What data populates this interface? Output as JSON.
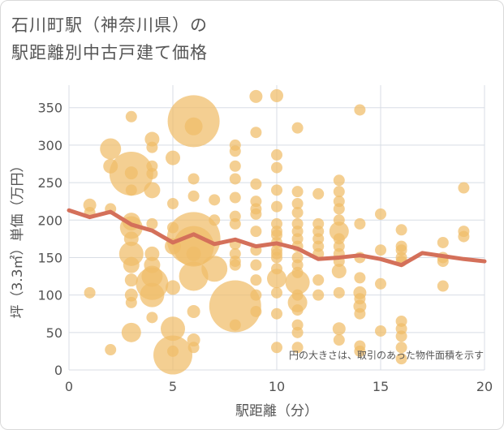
{
  "title": {
    "line1": "石川町駅（神奈川県）の",
    "line2": "駅距離別中古戸建て価格"
  },
  "chart_data": {
    "type": "scatter",
    "xlabel": "駅距離（分）",
    "ylabel": "坪（3.3㎡）単価（万円）",
    "xlim": [
      0,
      20
    ],
    "ylim": [
      0,
      380
    ],
    "xticks": [
      "0",
      "5",
      "10",
      "15",
      "20"
    ],
    "xtick_values": [
      0,
      5,
      10,
      15,
      20
    ],
    "yticks": [
      "0",
      "50",
      "100",
      "150",
      "200",
      "250",
      "300",
      "350"
    ],
    "ytick_values": [
      0,
      50,
      100,
      150,
      200,
      250,
      300,
      350
    ],
    "grid": true,
    "annotation": "円の大きさは、取引のあった物件面積を示す",
    "colors": {
      "bubble": "#f0bd68",
      "line": "#d4705a",
      "grid": "#d8dde5"
    },
    "bubbles": [
      {
        "x": 1,
        "y": 220,
        "s": 8
      },
      {
        "x": 1,
        "y": 210,
        "s": 7
      },
      {
        "x": 1,
        "y": 103,
        "s": 7
      },
      {
        "x": 2,
        "y": 295,
        "s": 13
      },
      {
        "x": 2,
        "y": 272,
        "s": 9
      },
      {
        "x": 2,
        "y": 215,
        "s": 7
      },
      {
        "x": 2,
        "y": 27,
        "s": 7
      },
      {
        "x": 3,
        "y": 338,
        "s": 7
      },
      {
        "x": 3,
        "y": 262,
        "s": 27
      },
      {
        "x": 3,
        "y": 263,
        "s": 8
      },
      {
        "x": 3,
        "y": 240,
        "s": 7
      },
      {
        "x": 3,
        "y": 198,
        "s": 11
      },
      {
        "x": 3,
        "y": 190,
        "s": 14
      },
      {
        "x": 3,
        "y": 175,
        "s": 9
      },
      {
        "x": 3,
        "y": 155,
        "s": 15
      },
      {
        "x": 3,
        "y": 140,
        "s": 10
      },
      {
        "x": 3,
        "y": 120,
        "s": 8
      },
      {
        "x": 3,
        "y": 100,
        "s": 8
      },
      {
        "x": 3,
        "y": 90,
        "s": 7
      },
      {
        "x": 3,
        "y": 50,
        "s": 12
      },
      {
        "x": 4,
        "y": 308,
        "s": 9
      },
      {
        "x": 4,
        "y": 297,
        "s": 7
      },
      {
        "x": 4,
        "y": 272,
        "s": 7
      },
      {
        "x": 4,
        "y": 262,
        "s": 7
      },
      {
        "x": 4,
        "y": 240,
        "s": 10
      },
      {
        "x": 4,
        "y": 195,
        "s": 7
      },
      {
        "x": 4,
        "y": 155,
        "s": 9
      },
      {
        "x": 4,
        "y": 140,
        "s": 10
      },
      {
        "x": 4,
        "y": 125,
        "s": 13
      },
      {
        "x": 4,
        "y": 115,
        "s": 20
      },
      {
        "x": 4,
        "y": 100,
        "s": 15
      },
      {
        "x": 4,
        "y": 70,
        "s": 7
      },
      {
        "x": 5,
        "y": 283,
        "s": 9
      },
      {
        "x": 5,
        "y": 222,
        "s": 7
      },
      {
        "x": 5,
        "y": 190,
        "s": 7
      },
      {
        "x": 5,
        "y": 165,
        "s": 10
      },
      {
        "x": 5,
        "y": 110,
        "s": 9
      },
      {
        "x": 5,
        "y": 55,
        "s": 15
      },
      {
        "x": 5,
        "y": 25,
        "s": 7
      },
      {
        "x": 5,
        "y": 20,
        "s": 24
      },
      {
        "x": 6,
        "y": 332,
        "s": 32
      },
      {
        "x": 6,
        "y": 325,
        "s": 11
      },
      {
        "x": 6,
        "y": 255,
        "s": 7
      },
      {
        "x": 6,
        "y": 232,
        "s": 7
      },
      {
        "x": 6,
        "y": 175,
        "s": 33
      },
      {
        "x": 6,
        "y": 165,
        "s": 25
      },
      {
        "x": 6,
        "y": 155,
        "s": 9
      },
      {
        "x": 6,
        "y": 125,
        "s": 18
      },
      {
        "x": 6,
        "y": 78,
        "s": 8
      },
      {
        "x": 6,
        "y": 40,
        "s": 8
      },
      {
        "x": 6,
        "y": 30,
        "s": 7
      },
      {
        "x": 7,
        "y": 227,
        "s": 7
      },
      {
        "x": 7,
        "y": 200,
        "s": 7
      },
      {
        "x": 7,
        "y": 135,
        "s": 16
      },
      {
        "x": 8,
        "y": 300,
        "s": 7
      },
      {
        "x": 8,
        "y": 292,
        "s": 7
      },
      {
        "x": 8,
        "y": 272,
        "s": 7
      },
      {
        "x": 8,
        "y": 255,
        "s": 7
      },
      {
        "x": 8,
        "y": 230,
        "s": 7
      },
      {
        "x": 8,
        "y": 205,
        "s": 7
      },
      {
        "x": 8,
        "y": 195,
        "s": 7
      },
      {
        "x": 8,
        "y": 168,
        "s": 7
      },
      {
        "x": 8,
        "y": 155,
        "s": 7
      },
      {
        "x": 8,
        "y": 145,
        "s": 7
      },
      {
        "x": 8,
        "y": 140,
        "s": 7
      },
      {
        "x": 8,
        "y": 85,
        "s": 32
      },
      {
        "x": 8,
        "y": 60,
        "s": 7
      },
      {
        "x": 9,
        "y": 365,
        "s": 8
      },
      {
        "x": 9,
        "y": 317,
        "s": 7
      },
      {
        "x": 9,
        "y": 248,
        "s": 7
      },
      {
        "x": 9,
        "y": 225,
        "s": 7
      },
      {
        "x": 9,
        "y": 215,
        "s": 7
      },
      {
        "x": 9,
        "y": 208,
        "s": 7
      },
      {
        "x": 9,
        "y": 185,
        "s": 7
      },
      {
        "x": 9,
        "y": 160,
        "s": 7
      },
      {
        "x": 9,
        "y": 140,
        "s": 7
      },
      {
        "x": 9,
        "y": 120,
        "s": 7
      },
      {
        "x": 9,
        "y": 100,
        "s": 7
      },
      {
        "x": 9,
        "y": 78,
        "s": 7
      },
      {
        "x": 10,
        "y": 366,
        "s": 8
      },
      {
        "x": 10,
        "y": 287,
        "s": 7
      },
      {
        "x": 10,
        "y": 270,
        "s": 7
      },
      {
        "x": 10,
        "y": 240,
        "s": 7
      },
      {
        "x": 10,
        "y": 218,
        "s": 7
      },
      {
        "x": 10,
        "y": 195,
        "s": 7
      },
      {
        "x": 10,
        "y": 185,
        "s": 7
      },
      {
        "x": 10,
        "y": 180,
        "s": 7
      },
      {
        "x": 10,
        "y": 170,
        "s": 7
      },
      {
        "x": 10,
        "y": 160,
        "s": 7
      },
      {
        "x": 10,
        "y": 155,
        "s": 7
      },
      {
        "x": 10,
        "y": 150,
        "s": 7
      },
      {
        "x": 10,
        "y": 135,
        "s": 7
      },
      {
        "x": 10,
        "y": 122,
        "s": 12
      },
      {
        "x": 10,
        "y": 103,
        "s": 7
      },
      {
        "x": 10,
        "y": 75,
        "s": 7
      },
      {
        "x": 10,
        "y": 30,
        "s": 7
      },
      {
        "x": 11,
        "y": 323,
        "s": 7
      },
      {
        "x": 11,
        "y": 238,
        "s": 7
      },
      {
        "x": 11,
        "y": 222,
        "s": 7
      },
      {
        "x": 11,
        "y": 210,
        "s": 7
      },
      {
        "x": 11,
        "y": 195,
        "s": 7
      },
      {
        "x": 11,
        "y": 185,
        "s": 7
      },
      {
        "x": 11,
        "y": 175,
        "s": 7
      },
      {
        "x": 11,
        "y": 165,
        "s": 7
      },
      {
        "x": 11,
        "y": 150,
        "s": 7
      },
      {
        "x": 11,
        "y": 140,
        "s": 7
      },
      {
        "x": 11,
        "y": 130,
        "s": 7
      },
      {
        "x": 11,
        "y": 117,
        "s": 15
      },
      {
        "x": 11,
        "y": 100,
        "s": 7
      },
      {
        "x": 11,
        "y": 90,
        "s": 12
      },
      {
        "x": 11,
        "y": 80,
        "s": 7
      },
      {
        "x": 11,
        "y": 60,
        "s": 7
      },
      {
        "x": 11,
        "y": 50,
        "s": 7
      },
      {
        "x": 11,
        "y": 30,
        "s": 7
      },
      {
        "x": 12,
        "y": 235,
        "s": 7
      },
      {
        "x": 12,
        "y": 195,
        "s": 7
      },
      {
        "x": 12,
        "y": 185,
        "s": 7
      },
      {
        "x": 12,
        "y": 175,
        "s": 7
      },
      {
        "x": 12,
        "y": 165,
        "s": 7
      },
      {
        "x": 12,
        "y": 155,
        "s": 7
      },
      {
        "x": 12,
        "y": 120,
        "s": 7
      },
      {
        "x": 12,
        "y": 100,
        "s": 7
      },
      {
        "x": 13,
        "y": 253,
        "s": 7
      },
      {
        "x": 13,
        "y": 238,
        "s": 7
      },
      {
        "x": 13,
        "y": 225,
        "s": 7
      },
      {
        "x": 13,
        "y": 215,
        "s": 7
      },
      {
        "x": 13,
        "y": 200,
        "s": 7
      },
      {
        "x": 13,
        "y": 185,
        "s": 12
      },
      {
        "x": 13,
        "y": 175,
        "s": 7
      },
      {
        "x": 13,
        "y": 165,
        "s": 7
      },
      {
        "x": 13,
        "y": 155,
        "s": 7
      },
      {
        "x": 13,
        "y": 145,
        "s": 7
      },
      {
        "x": 13,
        "y": 132,
        "s": 9
      },
      {
        "x": 13,
        "y": 103,
        "s": 7
      },
      {
        "x": 13,
        "y": 55,
        "s": 8
      },
      {
        "x": 13,
        "y": 40,
        "s": 7
      },
      {
        "x": 14,
        "y": 347,
        "s": 7
      },
      {
        "x": 14,
        "y": 195,
        "s": 7
      },
      {
        "x": 14,
        "y": 150,
        "s": 7
      },
      {
        "x": 14,
        "y": 123,
        "s": 7
      },
      {
        "x": 14,
        "y": 103,
        "s": 8
      },
      {
        "x": 14,
        "y": 95,
        "s": 7
      },
      {
        "x": 14,
        "y": 85,
        "s": 8
      },
      {
        "x": 14,
        "y": 75,
        "s": 7
      },
      {
        "x": 14,
        "y": 32,
        "s": 7
      },
      {
        "x": 14,
        "y": 25,
        "s": 7
      },
      {
        "x": 15,
        "y": 208,
        "s": 7
      },
      {
        "x": 15,
        "y": 160,
        "s": 7
      },
      {
        "x": 15,
        "y": 115,
        "s": 7
      },
      {
        "x": 15,
        "y": 52,
        "s": 7
      },
      {
        "x": 16,
        "y": 187,
        "s": 7
      },
      {
        "x": 16,
        "y": 165,
        "s": 7
      },
      {
        "x": 16,
        "y": 160,
        "s": 7
      },
      {
        "x": 16,
        "y": 150,
        "s": 7
      },
      {
        "x": 16,
        "y": 145,
        "s": 7
      },
      {
        "x": 16,
        "y": 65,
        "s": 7
      },
      {
        "x": 16,
        "y": 55,
        "s": 7
      },
      {
        "x": 16,
        "y": 45,
        "s": 7
      },
      {
        "x": 16,
        "y": 30,
        "s": 7
      },
      {
        "x": 16,
        "y": 15,
        "s": 7
      },
      {
        "x": 18,
        "y": 170,
        "s": 7
      },
      {
        "x": 18,
        "y": 150,
        "s": 7
      },
      {
        "x": 18,
        "y": 145,
        "s": 7
      },
      {
        "x": 18,
        "y": 112,
        "s": 7
      },
      {
        "x": 19,
        "y": 243,
        "s": 7
      },
      {
        "x": 19,
        "y": 185,
        "s": 7
      },
      {
        "x": 19,
        "y": 178,
        "s": 7
      }
    ],
    "trend": {
      "name": "",
      "x": [
        0,
        1,
        2,
        3,
        4,
        5,
        6,
        7,
        8,
        9,
        10,
        11,
        12,
        13,
        14,
        15,
        16,
        17,
        18,
        19,
        20
      ],
      "y": [
        213,
        204,
        211,
        194,
        186,
        170,
        181,
        168,
        174,
        165,
        169,
        162,
        148,
        150,
        153,
        148,
        140,
        156,
        152,
        148,
        145
      ]
    }
  }
}
